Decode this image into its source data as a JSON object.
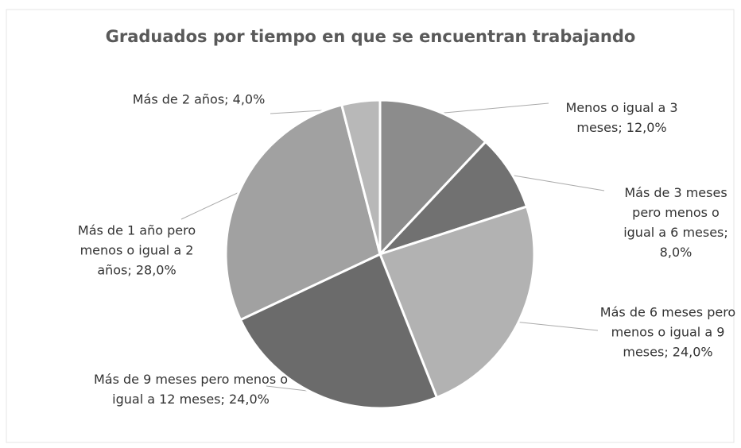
{
  "chart_data": {
    "type": "pie",
    "title": "Graduados por tiempo en que se encuentran trabajando",
    "values": [
      12,
      8,
      24,
      24,
      28,
      4
    ],
    "value_labels": [
      "Menos o igual a 3 meses; 12,0%",
      "Más de 3 meses pero menos o igual a 6 meses; 8,0%",
      "Más de 6 meses pero menos o igual a 9 meses; 24,0%",
      "Más de 9 meses pero menos o igual a 12 meses; 24,0%",
      "Más de 1 año pero menos o igual a 2 años; 28,0%",
      "Más de 2 años; 4,0%"
    ],
    "colors": [
      "#8c8c8c",
      "#717171",
      "#b2b2b2",
      "#6b6b6b",
      "#a1a1a1",
      "#b8b8b8"
    ]
  }
}
